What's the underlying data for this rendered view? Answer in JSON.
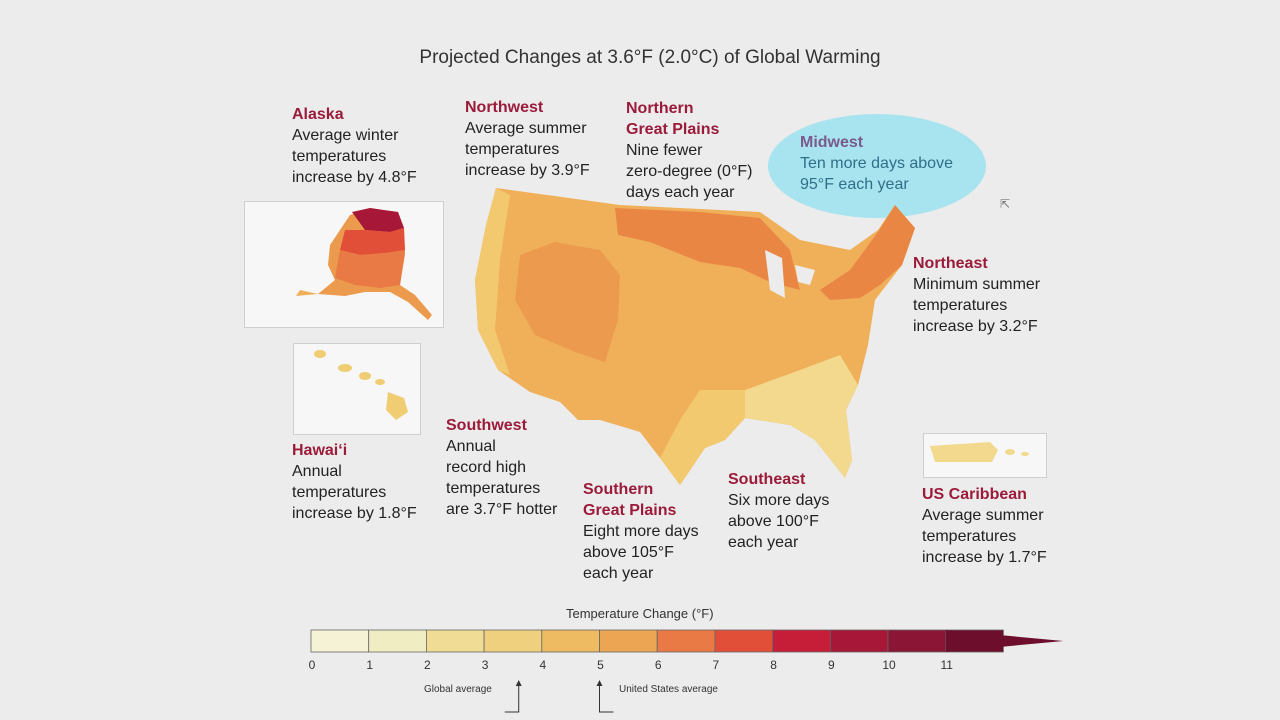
{
  "title": "Projected Changes at 3.6°F (2.0°C) of Global Warming",
  "regions": {
    "alaska": {
      "name": "Alaska",
      "text": "Average winter\ntemperatures\nincrease by 4.8°F"
    },
    "northwest": {
      "name": "Northwest",
      "text": "Average summer\ntemperatures\nincrease by 3.9°F"
    },
    "ngp": {
      "name": "Northern\nGreat Plains",
      "text": "Nine fewer\nzero-degree (0°F)\ndays each year"
    },
    "midwest": {
      "name": "Midwest",
      "text": "Ten more days above\n95°F each year"
    },
    "northeast": {
      "name": "Northeast",
      "text": "Minimum summer\ntemperatures\nincrease by 3.2°F"
    },
    "hawaii": {
      "name": "Hawai‘i",
      "text": "Annual\ntemperatures\nincrease by 1.8°F"
    },
    "southwest": {
      "name": "Southwest",
      "text": "Annual\nrecord high\ntemperatures\nare 3.7°F hotter"
    },
    "sgp": {
      "name": "Southern\nGreat Plains",
      "text": "Eight more days\nabove 105°F\neach year"
    },
    "southeast": {
      "name": "Southeast",
      "text": "Six more days\nabove 100°F\neach year"
    },
    "caribbean": {
      "name": "US Caribbean",
      "text": "Average summer\ntemperatures\nincrease by 1.7°F"
    }
  },
  "legend": {
    "title": "Temperature Change (°F)",
    "ticks": [
      "0",
      "1",
      "2",
      "3",
      "4",
      "5",
      "6",
      "7",
      "8",
      "9",
      "10",
      "11"
    ],
    "colors": [
      "#f6f2d6",
      "#f1edc2",
      "#f0dc95",
      "#eed07e",
      "#eebb62",
      "#eca552",
      "#e97a45",
      "#e14f38",
      "#c61e39",
      "#a71838",
      "#8b1535",
      "#6d0f2c"
    ],
    "global_average_label": "Global average",
    "global_average_value": 3.6,
    "us_average_label": "United States average",
    "us_average_value": 5.0
  },
  "map_colors": {
    "base": "#f0b05a",
    "light": "#f2c96f",
    "lighter": "#f2d98e",
    "warm": "#ec9a4e",
    "hot": "#e98644"
  }
}
